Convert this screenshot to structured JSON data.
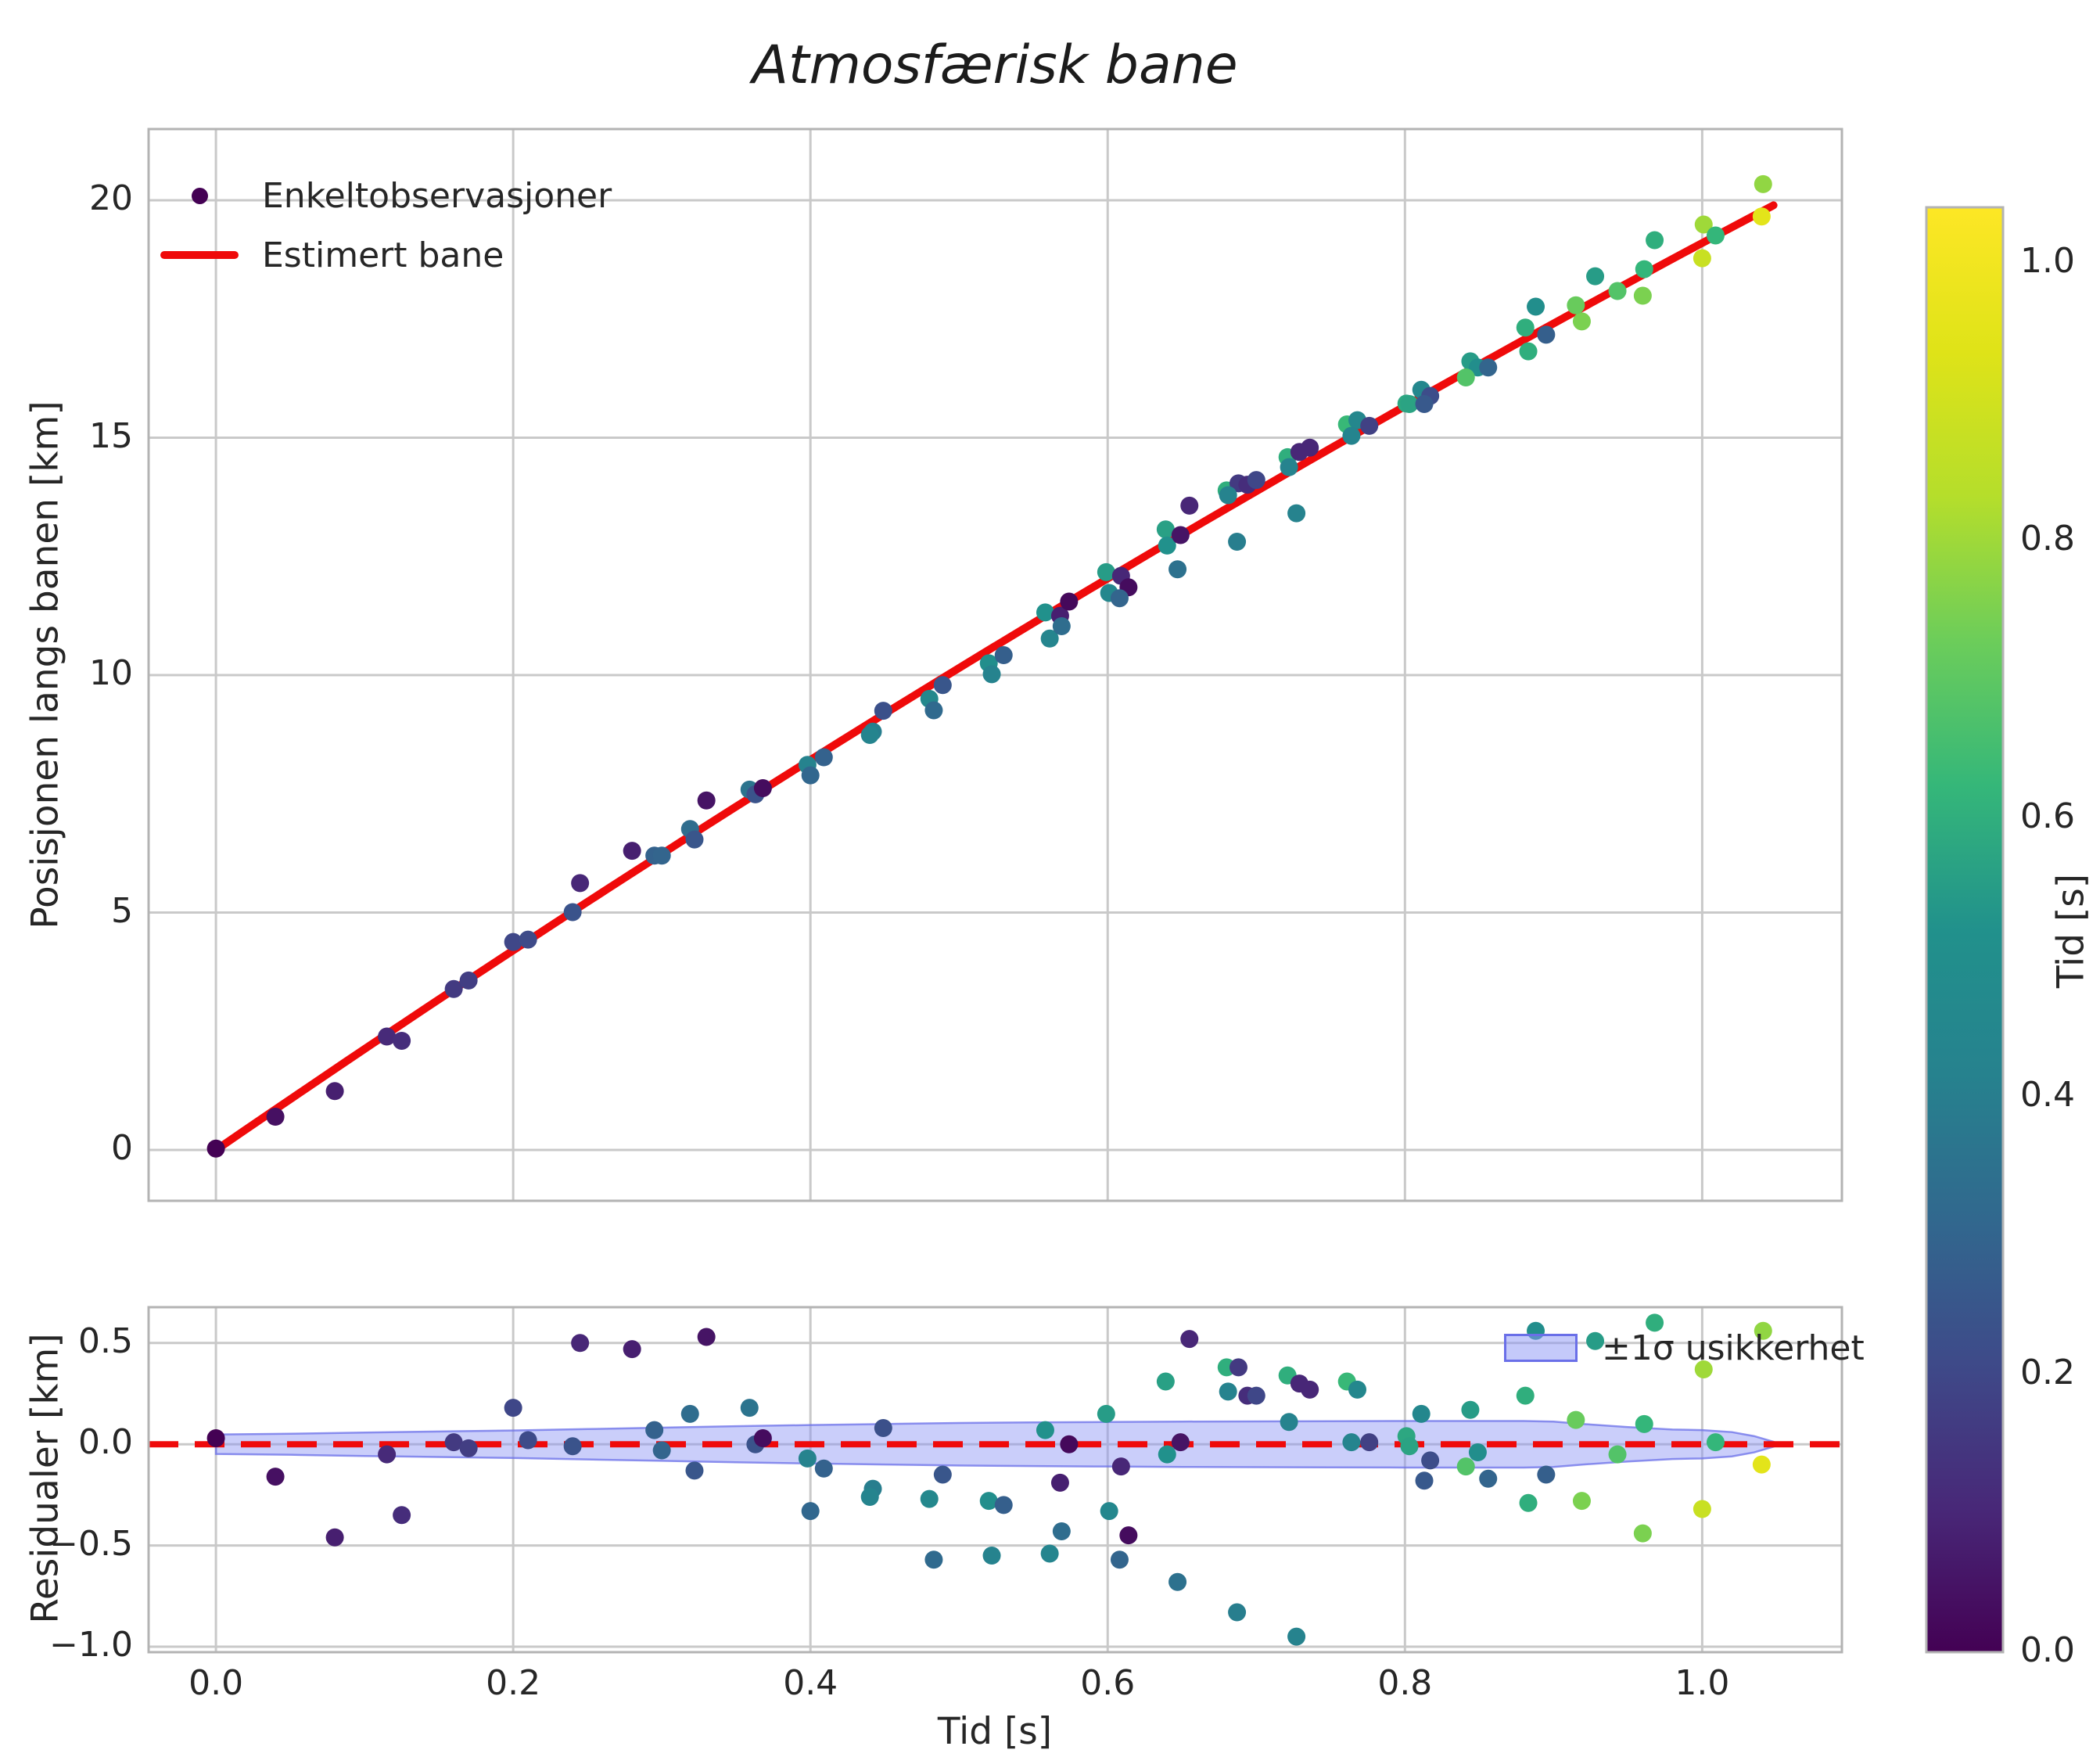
{
  "title": "Atmosfærisk bane",
  "colors": {
    "fit_line": "#ef0a0a",
    "grid": "#c9c9c9",
    "spine": "#b3b3b3",
    "text": "#262626",
    "band_fill": "#8a93f5",
    "band_edge": "#6a6fe8",
    "first_point": "#440154",
    "viridis": [
      "#440154",
      "#482878",
      "#3e4a89",
      "#31688e",
      "#26828e",
      "#21918c",
      "#35b779",
      "#6ccd5a",
      "#b5de2b",
      "#dfe318",
      "#fde725"
    ]
  },
  "top_chart": {
    "ylabel": "Posisjonen langs banen [km]",
    "ylim": [
      -1.07,
      21.5
    ],
    "yticks": [
      0,
      5,
      10,
      15,
      20
    ],
    "ytick_labels": [
      "0",
      "5",
      "10",
      "15",
      "20"
    ],
    "legend": [
      "Enkeltobservasjoner",
      "Estimert bane"
    ]
  },
  "bottom_chart": {
    "ylabel": "Residualer [km]",
    "xlabel": "Tid [s]",
    "ylim": [
      -1.027,
      0.677
    ],
    "yticks": [
      0.5,
      0.0,
      -0.5,
      -1.0
    ],
    "ytick_labels": [
      "0.5",
      "0.0",
      "−0.5",
      "−1.0"
    ],
    "xticks": [
      0.0,
      0.2,
      0.4,
      0.6,
      0.8,
      1.0
    ],
    "xtick_labels": [
      "0.0",
      "0.2",
      "0.4",
      "0.6",
      "0.8",
      "1.0"
    ],
    "legend": "±1σ usikkerhet"
  },
  "colorbar": {
    "label": "Tid [s]",
    "vmin": 0.0,
    "vmax": 1.04,
    "ticks": [
      0.0,
      0.2,
      0.4,
      0.6,
      0.8,
      1.0
    ],
    "tick_labels": [
      "0.0",
      "0.2",
      "0.4",
      "0.6",
      "0.8",
      "1.0"
    ]
  },
  "chart_data": [
    {
      "type": "scatter",
      "name": "Enkeltobservasjoner",
      "note": "points = [time_s, position_km, residual_km, color_time_s]; shared by both panels",
      "xlim": [
        -0.0453,
        1.094
      ],
      "points": [
        [
          0.0,
          0.03,
          0.03,
          0.0
        ],
        [
          0.04,
          0.7,
          -0.16,
          0.04
        ],
        [
          0.08,
          1.24,
          -0.46,
          0.08
        ],
        [
          0.115,
          2.39,
          -0.05,
          0.11
        ],
        [
          0.125,
          2.3,
          -0.35,
          0.12
        ],
        [
          0.16,
          3.39,
          0.01,
          0.16
        ],
        [
          0.17,
          3.57,
          -0.02,
          0.17
        ],
        [
          0.2,
          4.38,
          0.18,
          0.2
        ],
        [
          0.21,
          4.43,
          0.02,
          0.21
        ],
        [
          0.24,
          5.01,
          -0.01,
          0.24
        ],
        [
          0.245,
          5.62,
          0.5,
          0.1
        ],
        [
          0.28,
          6.3,
          0.47,
          0.08
        ],
        [
          0.295,
          6.2,
          0.07,
          0.29
        ],
        [
          0.3,
          6.2,
          -0.03,
          0.3
        ],
        [
          0.33,
          7.36,
          0.53,
          0.05
        ],
        [
          0.319,
          6.76,
          0.15,
          0.33
        ],
        [
          0.322,
          6.54,
          -0.13,
          0.25
        ],
        [
          0.359,
          7.59,
          0.18,
          0.36
        ],
        [
          0.363,
          7.49,
          0.0,
          0.24
        ],
        [
          0.368,
          7.62,
          0.03,
          0.03
        ],
        [
          0.398,
          8.11,
          -0.07,
          0.42
        ],
        [
          0.4,
          7.89,
          -0.33,
          0.31
        ],
        [
          0.409,
          8.27,
          -0.12,
          0.29
        ],
        [
          0.442,
          8.81,
          -0.22,
          0.4
        ],
        [
          0.44,
          8.74,
          -0.26,
          0.43
        ],
        [
          0.449,
          9.25,
          0.08,
          0.23
        ],
        [
          0.48,
          9.5,
          -0.27,
          0.46
        ],
        [
          0.483,
          9.26,
          -0.57,
          0.32
        ],
        [
          0.489,
          9.79,
          -0.15,
          0.25
        ],
        [
          0.52,
          10.25,
          -0.28,
          0.5
        ],
        [
          0.522,
          10.02,
          -0.55,
          0.42
        ],
        [
          0.53,
          10.42,
          -0.3,
          0.28
        ],
        [
          0.558,
          11.32,
          0.07,
          0.52
        ],
        [
          0.561,
          10.77,
          -0.54,
          0.44
        ],
        [
          0.568,
          11.25,
          -0.19,
          0.08
        ],
        [
          0.569,
          11.03,
          -0.43,
          0.33
        ],
        [
          0.574,
          11.55,
          0.0,
          0.02
        ],
        [
          0.599,
          12.17,
          0.15,
          0.55
        ],
        [
          0.601,
          11.73,
          -0.33,
          0.45
        ],
        [
          0.609,
          12.09,
          -0.11,
          0.1
        ],
        [
          0.614,
          11.85,
          -0.45,
          0.03
        ],
        [
          0.608,
          11.62,
          -0.57,
          0.3
        ],
        [
          0.639,
          13.07,
          0.31,
          0.56
        ],
        [
          0.655,
          13.57,
          0.52,
          0.1
        ],
        [
          0.64,
          12.73,
          -0.05,
          0.52
        ],
        [
          0.649,
          12.95,
          0.01,
          0.05
        ],
        [
          0.68,
          13.89,
          0.38,
          0.6
        ],
        [
          0.688,
          14.04,
          0.38,
          0.16
        ],
        [
          0.681,
          13.79,
          0.26,
          0.42
        ],
        [
          0.694,
          14.01,
          0.24,
          0.12
        ],
        [
          0.647,
          12.23,
          -0.68,
          0.35
        ],
        [
          0.687,
          12.81,
          -0.83,
          0.4
        ],
        [
          0.727,
          13.41,
          -0.95,
          0.42
        ],
        [
          0.721,
          14.59,
          0.34,
          0.6
        ],
        [
          0.729,
          14.7,
          0.3,
          0.1
        ],
        [
          0.736,
          14.79,
          0.27,
          0.1
        ],
        [
          0.7,
          14.11,
          0.24,
          0.2
        ],
        [
          0.761,
          15.28,
          0.31,
          0.63
        ],
        [
          0.768,
          15.37,
          0.27,
          0.45
        ],
        [
          0.722,
          14.38,
          0.11,
          0.42
        ],
        [
          0.764,
          15.04,
          0.01,
          0.43
        ],
        [
          0.776,
          15.25,
          0.01,
          0.18
        ],
        [
          0.801,
          15.72,
          0.04,
          0.58
        ],
        [
          0.803,
          15.71,
          -0.01,
          0.57
        ],
        [
          0.811,
          16.01,
          0.15,
          0.45
        ],
        [
          0.817,
          15.88,
          -0.08,
          0.22
        ],
        [
          0.813,
          15.71,
          -0.18,
          0.26
        ],
        [
          0.844,
          16.61,
          0.17,
          0.55
        ],
        [
          0.849,
          16.48,
          -0.04,
          0.5
        ],
        [
          0.841,
          16.27,
          -0.11,
          0.68
        ],
        [
          0.856,
          16.48,
          -0.17,
          0.3
        ],
        [
          0.888,
          17.76,
          0.56,
          0.5
        ],
        [
          0.881,
          17.32,
          0.24,
          0.6
        ],
        [
          0.928,
          18.4,
          0.51,
          0.55
        ],
        [
          0.883,
          16.82,
          -0.29,
          0.6
        ],
        [
          0.919,
          17.45,
          -0.28,
          0.75
        ],
        [
          0.895,
          17.17,
          -0.15,
          0.28
        ],
        [
          0.961,
          18.55,
          0.1,
          0.62
        ],
        [
          0.968,
          19.16,
          0.6,
          0.6
        ],
        [
          0.96,
          17.99,
          -0.44,
          0.75
        ],
        [
          1.001,
          19.49,
          0.37,
          0.8
        ],
        [
          1.0,
          18.78,
          -0.32,
          0.88
        ],
        [
          1.009,
          19.26,
          0.01,
          0.62
        ],
        [
          1.041,
          20.34,
          0.56,
          0.78
        ],
        [
          1.04,
          19.66,
          -0.1,
          0.95
        ],
        [
          0.915,
          17.79,
          0.12,
          0.72
        ],
        [
          0.943,
          18.09,
          -0.05,
          0.68
        ]
      ]
    },
    {
      "type": "line",
      "name": "Estimert bane",
      "fit": "s(t) = 21.5*t - 2.4*t^2",
      "coeffs": {
        "linear": 21.5,
        "quadratic": -2.4
      },
      "t_range": [
        0.0,
        1.048
      ]
    },
    {
      "type": "area",
      "name": "±1σ usikkerhet",
      "t": [
        0.0,
        0.05,
        0.1,
        0.15,
        0.2,
        0.25,
        0.3,
        0.35,
        0.4,
        0.45,
        0.5,
        0.55,
        0.6,
        0.65,
        0.7,
        0.75,
        0.8,
        0.85,
        0.88,
        0.9,
        0.92,
        0.95,
        0.98,
        1.0,
        1.02,
        1.035,
        1.048
      ],
      "sigma": [
        0.048,
        0.052,
        0.058,
        0.063,
        0.068,
        0.075,
        0.082,
        0.089,
        0.095,
        0.1,
        0.105,
        0.108,
        0.11,
        0.112,
        0.113,
        0.114,
        0.115,
        0.115,
        0.115,
        0.112,
        0.1,
        0.085,
        0.073,
        0.07,
        0.06,
        0.04,
        0.012
      ]
    }
  ]
}
